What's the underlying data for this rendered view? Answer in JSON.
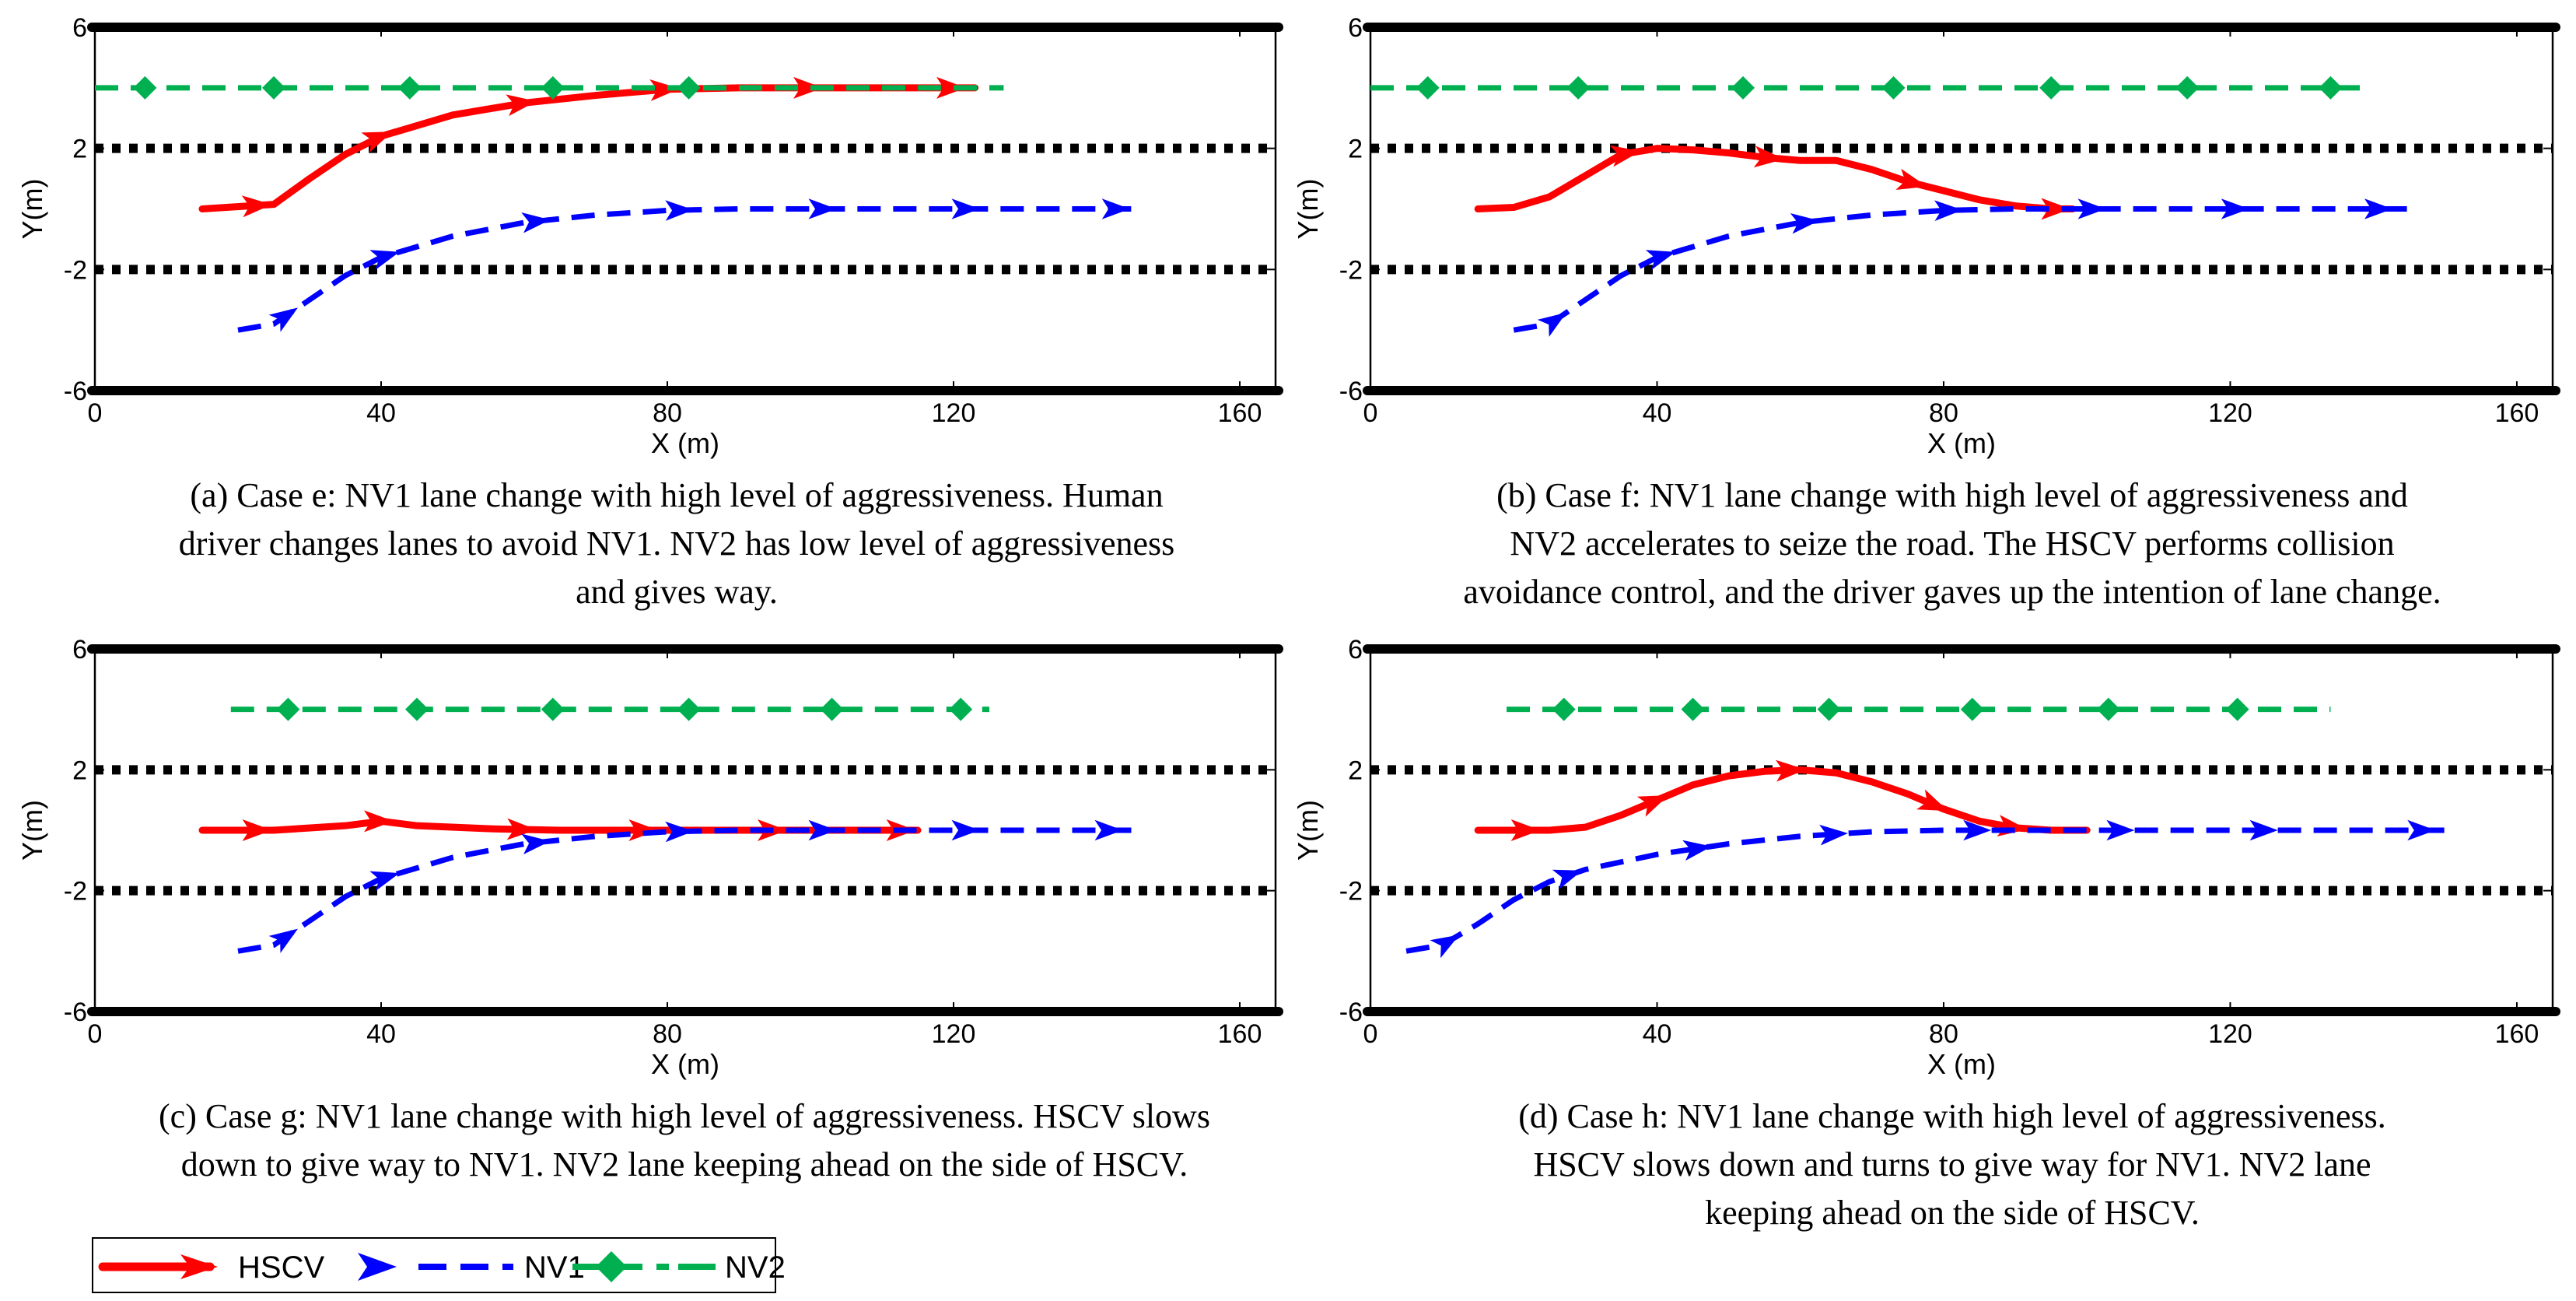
{
  "colors": {
    "hscv": "#ff0000",
    "nv1": "#0000ff",
    "nv2": "#00b050",
    "road": "#000000"
  },
  "legend": {
    "hscv": "HSCV",
    "nv1": "NV1",
    "nv2": "NV2"
  },
  "chart_data": [
    {
      "type": "line",
      "id": "a",
      "xlabel": "X (m)",
      "ylabel": "Y(m)",
      "xlim": [
        0,
        165
      ],
      "ylim": [
        -6,
        6
      ],
      "xticks": [
        "0",
        "40",
        "80",
        "120",
        "160"
      ],
      "yticks": [
        "-6",
        "-2",
        "2",
        "6"
      ],
      "caption_lines": [
        "(a)  Case e: NV1 lane change with high level of aggressiveness. Human",
        "driver changes lanes to avoid NV1. NV2 has low level of aggressiveness",
        "and gives way."
      ],
      "series": [
        {
          "name": "HSCV",
          "x": [
            15,
            25,
            30,
            35,
            40,
            50,
            60,
            70,
            80,
            90,
            100,
            110,
            123
          ],
          "y": [
            0,
            0.15,
            1.0,
            1.8,
            2.4,
            3.1,
            3.5,
            3.75,
            3.95,
            4.0,
            4.0,
            4.0,
            4.0
          ],
          "markers_x": [
            23,
            40,
            60,
            80,
            100,
            120
          ]
        },
        {
          "name": "NV1",
          "x": [
            20,
            25,
            30,
            35,
            40,
            50,
            60,
            70,
            80,
            90,
            100,
            110,
            120,
            130,
            145
          ],
          "y": [
            -4,
            -3.8,
            -3.0,
            -2.2,
            -1.6,
            -0.9,
            -0.45,
            -0.2,
            -0.05,
            0,
            0,
            0,
            0,
            0,
            0
          ],
          "markers_x": [
            27,
            41,
            62,
            82,
            102,
            122,
            143
          ]
        },
        {
          "name": "NV2",
          "x": [
            0,
            127
          ],
          "y": [
            4.0,
            4.0
          ],
          "markers_x": [
            7,
            25,
            44,
            64,
            83
          ]
        }
      ]
    },
    {
      "type": "line",
      "id": "b",
      "xlabel": "X (m)",
      "ylabel": "Y(m)",
      "xlim": [
        0,
        165
      ],
      "ylim": [
        -6,
        6
      ],
      "xticks": [
        "0",
        "40",
        "80",
        "120",
        "160"
      ],
      "yticks": [
        "-6",
        "-2",
        "2",
        "6"
      ],
      "caption_lines": [
        "(b)  Case f: NV1 lane change with high level of aggressiveness and",
        "NV2 accelerates to seize the road. The HSCV performs collision",
        "avoidance control, and the driver gaves up the intention of lane change."
      ],
      "series": [
        {
          "name": "HSCV",
          "x": [
            15,
            20,
            25,
            30,
            35,
            40,
            45,
            50,
            55,
            60,
            65,
            70,
            75,
            80,
            85,
            90,
            95,
            98
          ],
          "y": [
            0,
            0.05,
            0.4,
            1.1,
            1.8,
            2.0,
            1.95,
            1.85,
            1.7,
            1.6,
            1.6,
            1.3,
            0.9,
            0.6,
            0.3,
            0.1,
            0,
            0
          ],
          "markers_x": [
            36,
            56,
            76,
            96
          ]
        },
        {
          "name": "NV1",
          "x": [
            20,
            25,
            30,
            35,
            40,
            50,
            60,
            70,
            80,
            90,
            100,
            110,
            120,
            130,
            145
          ],
          "y": [
            -4,
            -3.8,
            -3.0,
            -2.2,
            -1.6,
            -0.9,
            -0.45,
            -0.2,
            -0.05,
            0,
            0,
            0,
            0,
            0,
            0
          ],
          "markers_x": [
            26,
            41,
            61,
            81,
            101,
            121,
            141
          ]
        },
        {
          "name": "NV2",
          "x": [
            0,
            139
          ],
          "y": [
            4.0,
            4.0
          ],
          "markers_x": [
            8,
            29,
            52,
            73,
            95,
            114,
            134
          ]
        }
      ]
    },
    {
      "type": "line",
      "id": "c",
      "xlabel": "X (m)",
      "ylabel": "Y(m)",
      "xlim": [
        0,
        165
      ],
      "ylim": [
        -6,
        6
      ],
      "xticks": [
        "0",
        "40",
        "80",
        "120",
        "160"
      ],
      "yticks": [
        "-6",
        "-2",
        "2",
        "6"
      ],
      "caption_lines": [
        "(c)  Case g: NV1 lane change with high level of aggressiveness. HSCV slows",
        "down to give way to NV1. NV2 lane keeping ahead on the side of HSCV."
      ],
      "series": [
        {
          "name": "HSCV",
          "x": [
            15,
            25,
            35,
            40,
            45,
            55,
            65,
            75,
            85,
            95,
            105,
            115
          ],
          "y": [
            0,
            0,
            0.15,
            0.3,
            0.15,
            0.05,
            0,
            0,
            0,
            0,
            0,
            0
          ],
          "markers_x": [
            23,
            40,
            60,
            77,
            95,
            113
          ]
        },
        {
          "name": "NV1",
          "x": [
            20,
            25,
            30,
            35,
            40,
            50,
            60,
            70,
            80,
            90,
            100,
            110,
            120,
            130,
            145
          ],
          "y": [
            -4,
            -3.8,
            -3.0,
            -2.2,
            -1.6,
            -0.9,
            -0.45,
            -0.2,
            -0.05,
            0,
            0,
            0,
            0,
            0,
            0
          ],
          "markers_x": [
            27,
            41,
            62,
            82,
            102,
            122,
            142
          ]
        },
        {
          "name": "NV2",
          "x": [
            19,
            125
          ],
          "y": [
            4.0,
            4.0
          ],
          "markers_x": [
            27,
            45,
            64,
            83,
            103,
            121
          ]
        }
      ]
    },
    {
      "type": "line",
      "id": "d",
      "xlabel": "X (m)",
      "ylabel": "Y(m)",
      "xlim": [
        0,
        165
      ],
      "ylim": [
        -6,
        6
      ],
      "xticks": [
        "0",
        "40",
        "80",
        "120",
        "160"
      ],
      "yticks": [
        "-6",
        "-2",
        "2",
        "6"
      ],
      "caption_lines": [
        "(d)  Case h: NV1 lane change with high level of aggressiveness.",
        "HSCV slows down and turns to give way for NV1. NV2 lane",
        "keeping ahead on the side of HSCV."
      ],
      "series": [
        {
          "name": "HSCV",
          "x": [
            15,
            20,
            25,
            30,
            35,
            40,
            45,
            50,
            55,
            60,
            65,
            70,
            75,
            80,
            85,
            90,
            95,
            100
          ],
          "y": [
            0,
            0,
            0,
            0.1,
            0.5,
            1.0,
            1.5,
            1.8,
            1.95,
            2.0,
            1.9,
            1.6,
            1.2,
            0.7,
            0.3,
            0.08,
            0,
            0
          ],
          "markers_x": [
            22,
            40,
            59,
            79,
            90
          ]
        },
        {
          "name": "NV1",
          "x": [
            5,
            10,
            15,
            20,
            25,
            30,
            40,
            50,
            60,
            70,
            80,
            90,
            100,
            120,
            150
          ],
          "y": [
            -4,
            -3.8,
            -3.1,
            -2.3,
            -1.7,
            -1.3,
            -0.8,
            -0.45,
            -0.2,
            -0.05,
            0,
            0,
            0,
            0,
            0
          ],
          "markers_x": [
            11,
            28,
            46,
            65,
            85,
            105,
            125,
            147
          ]
        },
        {
          "name": "NV2",
          "x": [
            19,
            134
          ],
          "y": [
            4.0,
            4.0
          ],
          "markers_x": [
            27,
            45,
            64,
            84,
            103,
            121
          ]
        }
      ]
    }
  ]
}
